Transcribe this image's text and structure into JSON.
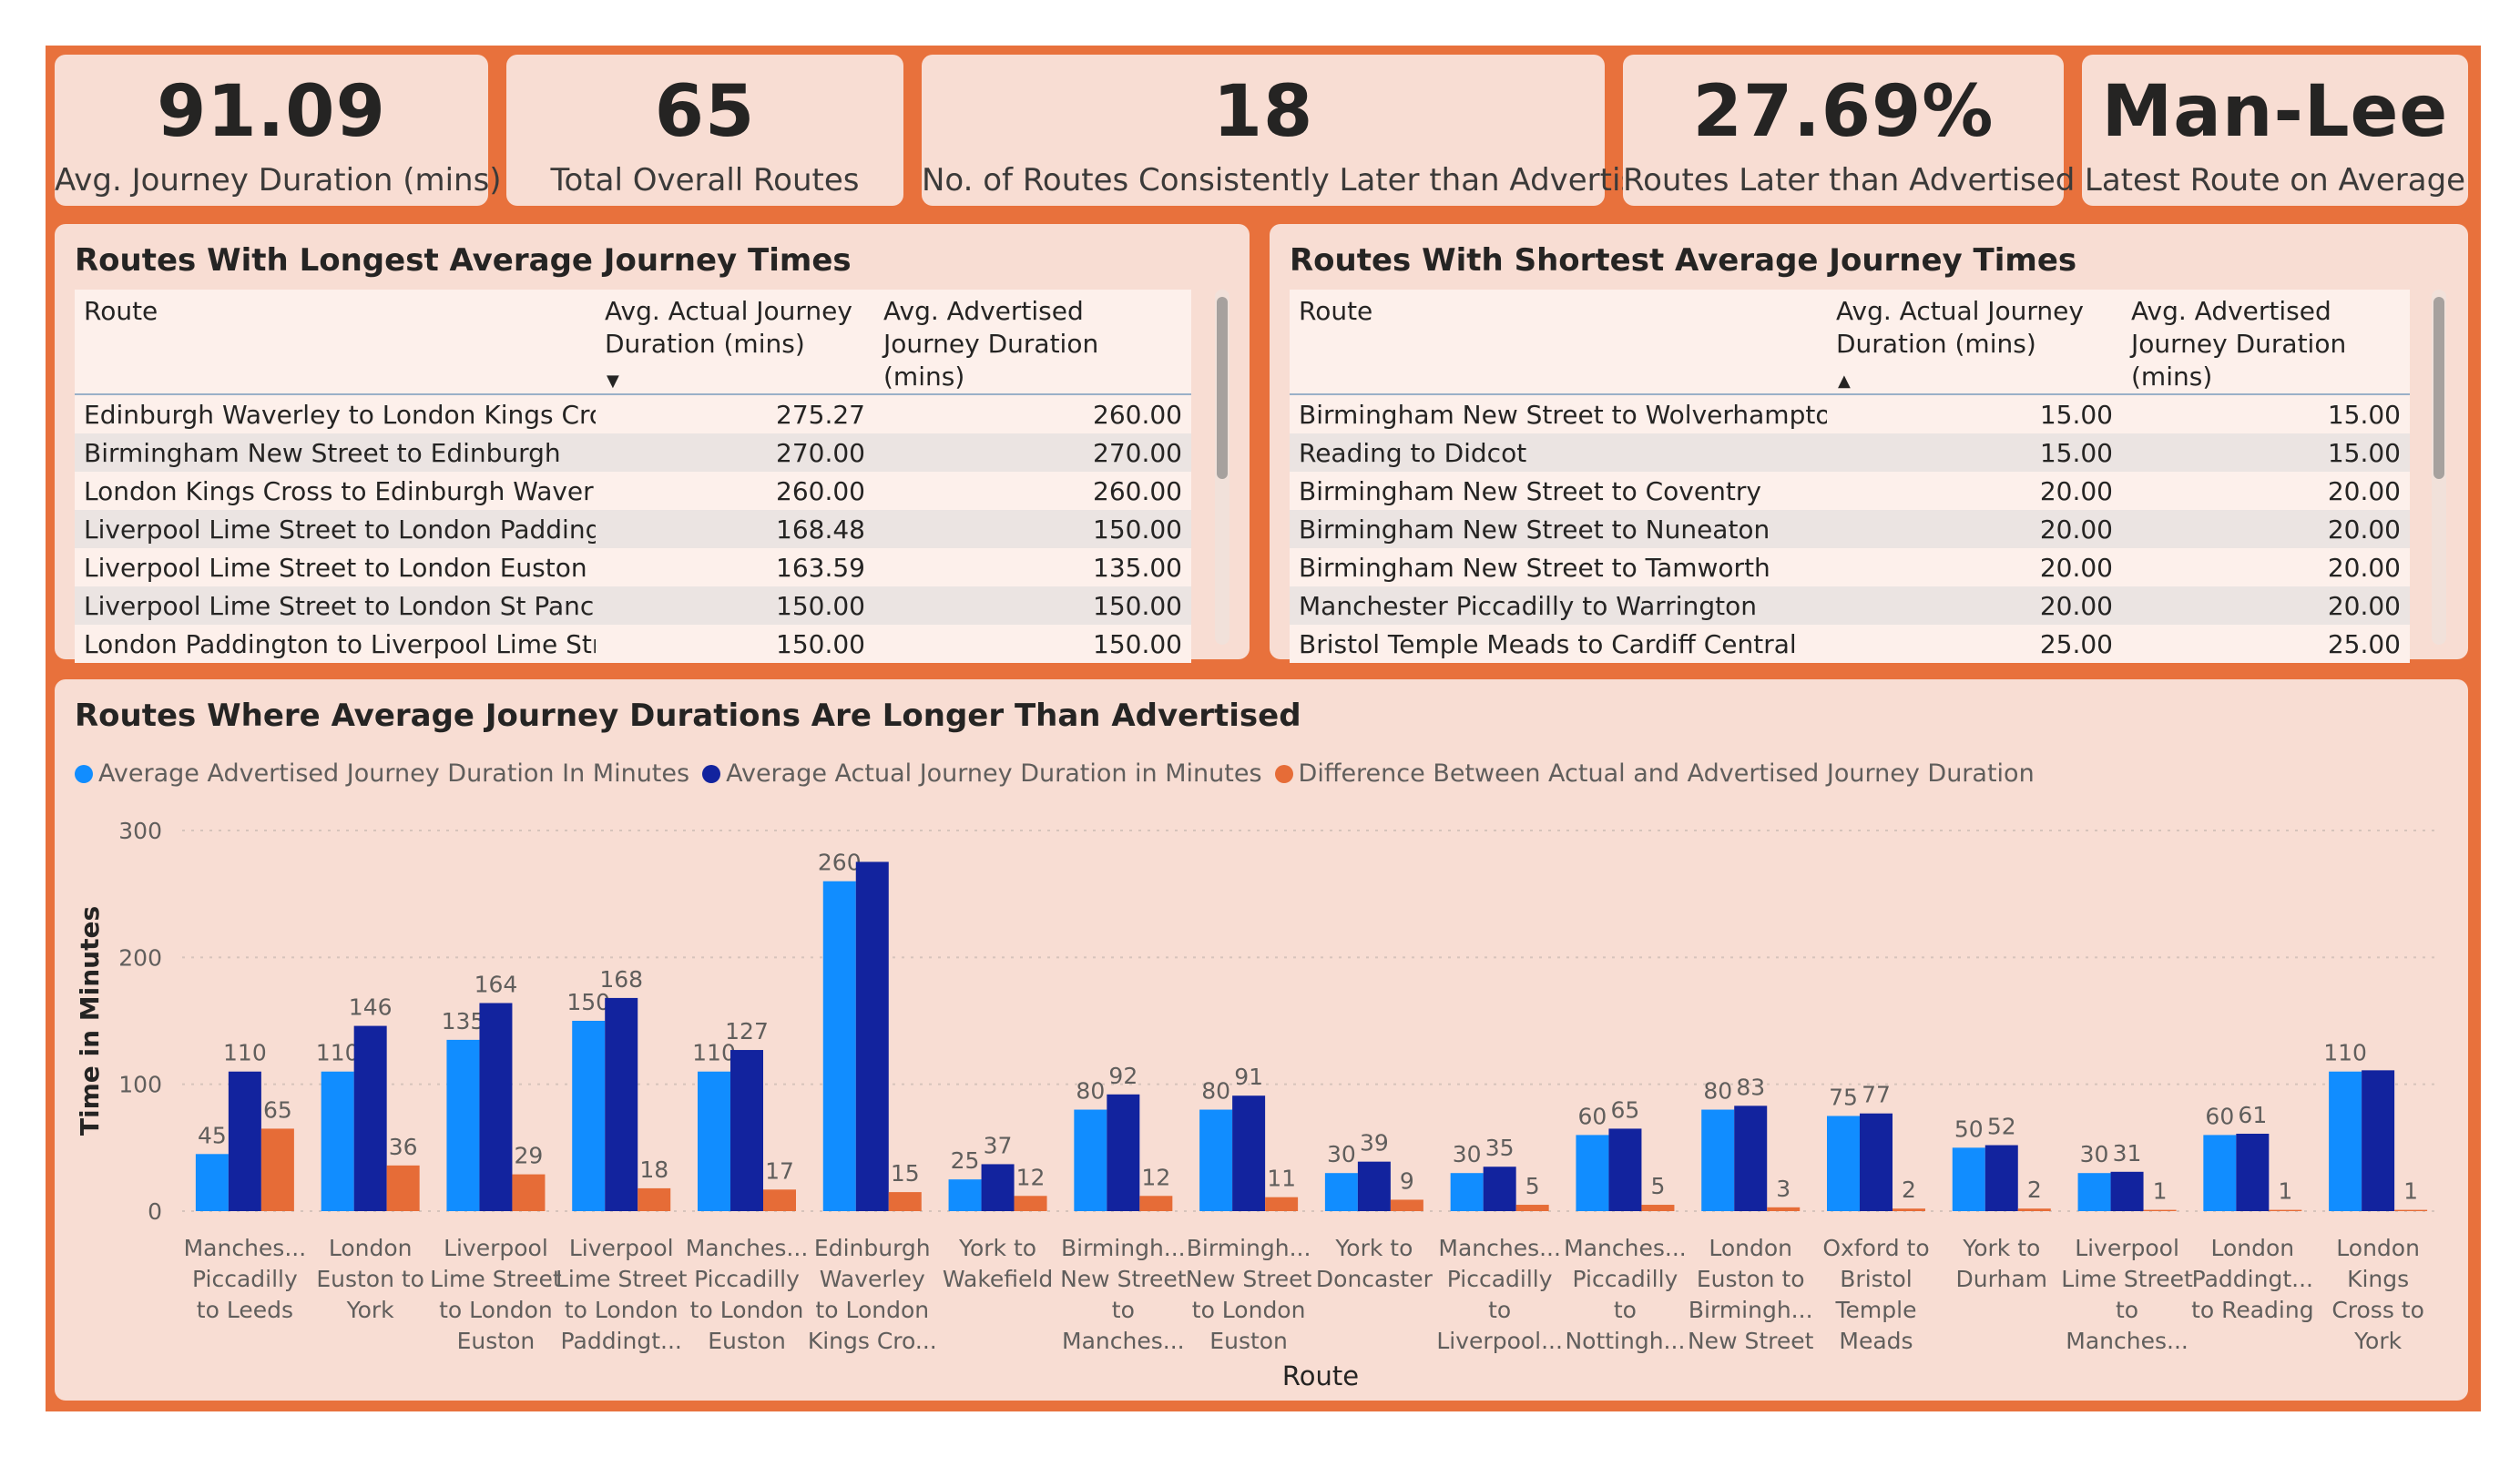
{
  "colors": {
    "frame": "#E8713C",
    "card": "#F8DDD3",
    "advertised": "#118DFF",
    "actual": "#12239E",
    "difference": "#E66C37"
  },
  "kpis": [
    {
      "value": "91.09",
      "label": "Avg. Journey Duration (mins)"
    },
    {
      "value": "65",
      "label": "Total Overall Routes"
    },
    {
      "value": "18",
      "label": "No. of Routes Consistently Later than Advertised"
    },
    {
      "value": "27.69%",
      "label": "Routes Later than Advertised"
    },
    {
      "value": "Man-Lee",
      "label": "Latest Route on Average"
    }
  ],
  "longest": {
    "title": "Routes With Longest Average Journey Times",
    "columns": [
      "Route",
      "Avg. Actual Journey Duration (mins)",
      "Avg. Advertised Journey Duration (mins)"
    ],
    "sort_icon": "sort-descending-icon",
    "rows": [
      [
        "Edinburgh Waverley to London Kings Cross",
        "275.27",
        "260.00"
      ],
      [
        "Birmingham New Street to Edinburgh",
        "270.00",
        "270.00"
      ],
      [
        "London Kings Cross to Edinburgh Waverley",
        "260.00",
        "260.00"
      ],
      [
        "Liverpool Lime Street to London Paddington",
        "168.48",
        "150.00"
      ],
      [
        "Liverpool Lime Street to London Euston",
        "163.59",
        "135.00"
      ],
      [
        "Liverpool Lime Street to London St Pancras",
        "150.00",
        "150.00"
      ],
      [
        "London Paddington to Liverpool Lime Street",
        "150.00",
        "150.00"
      ]
    ]
  },
  "shortest": {
    "title": "Routes With Shortest Average Journey Times",
    "columns": [
      "Route",
      "Avg. Actual Journey Duration (mins)",
      "Avg. Advertised Journey Duration (mins)"
    ],
    "sort_icon": "sort-ascending-icon",
    "rows": [
      [
        "Birmingham New Street to Wolverhampton",
        "15.00",
        "15.00"
      ],
      [
        "Reading to Didcot",
        "15.00",
        "15.00"
      ],
      [
        "Birmingham New Street to Coventry",
        "20.00",
        "20.00"
      ],
      [
        "Birmingham New Street to Nuneaton",
        "20.00",
        "20.00"
      ],
      [
        "Birmingham New Street to Tamworth",
        "20.00",
        "20.00"
      ],
      [
        "Manchester Piccadilly to Warrington",
        "20.00",
        "20.00"
      ],
      [
        "Bristol Temple Meads to Cardiff Central",
        "25.00",
        "25.00"
      ]
    ]
  },
  "chart_data": {
    "type": "bar",
    "title": "Routes Where Average Journey Durations Are Longer Than Advertised",
    "xlabel": "Route",
    "ylabel": "Time in Minutes",
    "ylim": [
      0,
      300
    ],
    "yticks": [
      0,
      100,
      200,
      300
    ],
    "grid": true,
    "legend_position": "top-left",
    "categories": [
      [
        "Manches...",
        "Piccadilly",
        "to Leeds"
      ],
      [
        "London",
        "Euston to",
        "York"
      ],
      [
        "Liverpool",
        "Lime Street",
        "to London",
        "Euston"
      ],
      [
        "Liverpool",
        "Lime Street",
        "to London",
        "Paddingt..."
      ],
      [
        "Manches...",
        "Piccadilly",
        "to London",
        "Euston"
      ],
      [
        "Edinburgh",
        "Waverley",
        "to London",
        "Kings Cro..."
      ],
      [
        "York to",
        "Wakefield"
      ],
      [
        "Birmingh...",
        "New Street",
        "to",
        "Manches..."
      ],
      [
        "Birmingh...",
        "New Street",
        "to London",
        "Euston"
      ],
      [
        "York to",
        "Doncaster"
      ],
      [
        "Manches...",
        "Piccadilly",
        "to",
        "Liverpool..."
      ],
      [
        "Manches...",
        "Piccadilly",
        "to",
        "Nottingh..."
      ],
      [
        "London",
        "Euston to",
        "Birmingh...",
        "New Street"
      ],
      [
        "Oxford to",
        "Bristol",
        "Temple",
        "Meads"
      ],
      [
        "York to",
        "Durham"
      ],
      [
        "Liverpool",
        "Lime Street",
        "to",
        "Manches..."
      ],
      [
        "London",
        "Paddingt...",
        "to Reading"
      ],
      [
        "London",
        "Kings",
        "Cross to",
        "York"
      ]
    ],
    "series": [
      {
        "name": "Average Advertised Journey Duration In Minutes",
        "color": "#118DFF",
        "values": [
          45,
          110,
          135,
          150,
          110,
          260,
          25,
          80,
          80,
          30,
          30,
          60,
          80,
          75,
          50,
          30,
          60,
          110
        ]
      },
      {
        "name": "Average Actual Journey Duration in Minutes",
        "color": "#12239E",
        "values": [
          110,
          146,
          164,
          168,
          127,
          275.27,
          37,
          92,
          91,
          39,
          35,
          65,
          83,
          77,
          52,
          31,
          61,
          111
        ]
      },
      {
        "name": "Difference Between Actual and Advertised Journey Duration",
        "color": "#E66C37",
        "values": [
          65,
          36,
          29,
          18,
          17,
          15,
          12,
          12,
          11,
          9,
          5,
          5,
          3,
          2,
          2,
          1,
          1,
          1
        ]
      }
    ],
    "data_labels": [
      [
        "45",
        "110",
        "135",
        "150",
        "110",
        "260",
        "25",
        "80",
        "80",
        "30",
        "30",
        "60",
        "80",
        "75",
        "50",
        "30",
        "60",
        "110"
      ],
      [
        "110",
        "146",
        "164",
        "168",
        "127",
        "",
        "37",
        "92",
        "91",
        "39",
        "35",
        "65",
        "83",
        "77",
        "52",
        "31",
        "61",
        ""
      ],
      [
        "65",
        "36",
        "29",
        "18",
        "17",
        "15",
        "12",
        "12",
        "11",
        "9",
        "5",
        "5",
        "3",
        "2",
        "2",
        "1",
        "1",
        "1"
      ]
    ]
  }
}
